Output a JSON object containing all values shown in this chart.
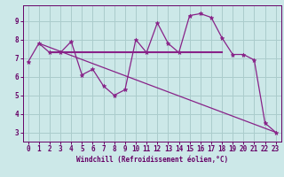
{
  "bg_color": "#cce8e8",
  "grid_color": "#aacccc",
  "line_color": "#882288",
  "xlabel": "Windchill (Refroidissement éolien,°C)",
  "ylim": [
    2.5,
    9.85
  ],
  "xlim": [
    -0.5,
    23.5
  ],
  "yticks": [
    3,
    4,
    5,
    6,
    7,
    8,
    9
  ],
  "xticks": [
    0,
    1,
    2,
    3,
    4,
    5,
    6,
    7,
    8,
    9,
    10,
    11,
    12,
    13,
    14,
    15,
    16,
    17,
    18,
    19,
    20,
    21,
    22,
    23
  ],
  "curve1_x": [
    0,
    1,
    2,
    3,
    4,
    5,
    6,
    7,
    8,
    9,
    10,
    11,
    12,
    13,
    14,
    15,
    16,
    17,
    18,
    19,
    20,
    21,
    22,
    23
  ],
  "curve1_y": [
    6.8,
    7.8,
    7.3,
    7.3,
    7.9,
    6.1,
    6.4,
    5.5,
    5.0,
    5.3,
    8.0,
    7.3,
    8.9,
    7.8,
    7.3,
    9.3,
    9.4,
    9.2,
    8.1,
    7.2,
    7.2,
    6.9,
    3.5,
    3.0
  ],
  "curve2_x": [
    2,
    18
  ],
  "curve2_y": [
    7.3,
    7.3
  ],
  "curve3_x": [
    1,
    23
  ],
  "curve3_y": [
    7.8,
    3.0
  ],
  "tick_color": "#660066",
  "spine_color": "#660066",
  "label_fontsize": 5.5,
  "tick_fontsize": 5.5
}
